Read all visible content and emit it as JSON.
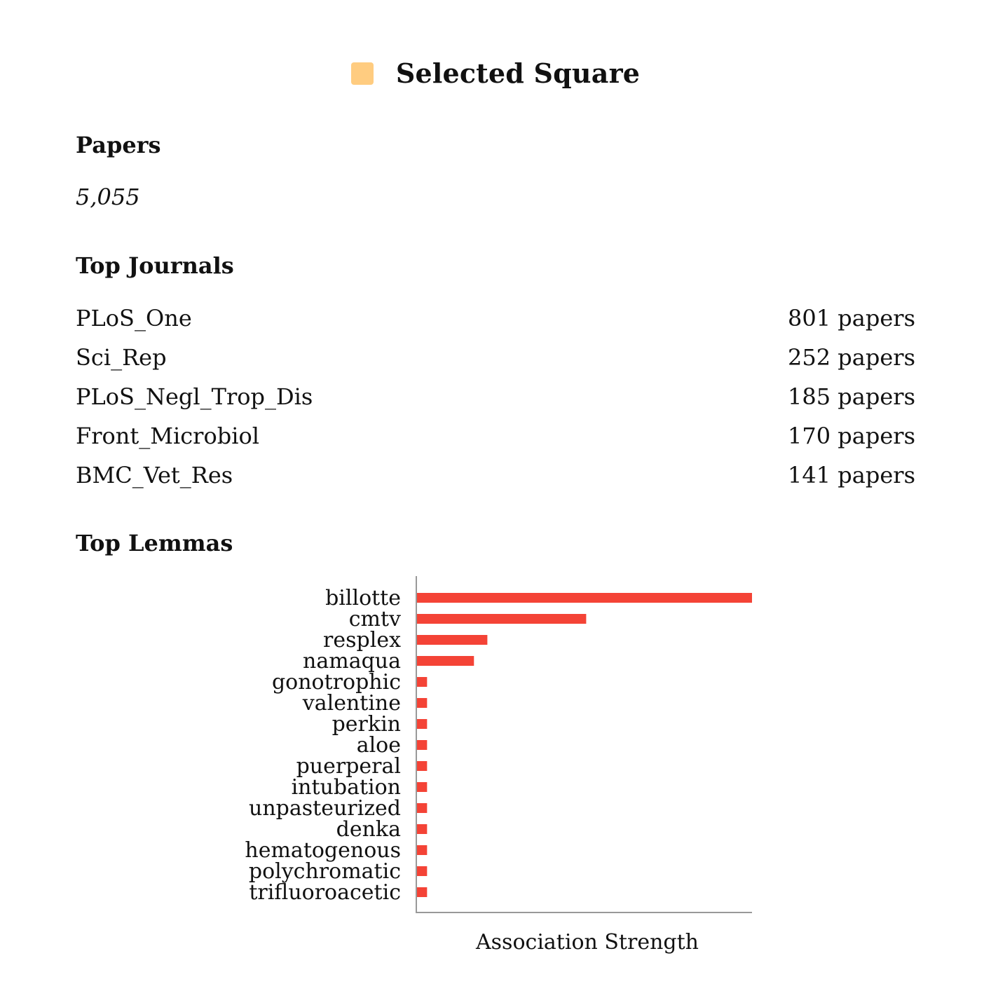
{
  "header": {
    "title": "Selected Square",
    "swatch_color": "#FFCC80"
  },
  "papers": {
    "title": "Papers",
    "count": "5,055"
  },
  "journals": {
    "title": "Top Journals",
    "items": [
      {
        "name": "PLoS_One",
        "count": "801 papers"
      },
      {
        "name": "Sci_Rep",
        "count": "252 papers"
      },
      {
        "name": "PLoS_Negl_Trop_Dis",
        "count": "185 papers"
      },
      {
        "name": "Front_Microbiol",
        "count": "170 papers"
      },
      {
        "name": "BMC_Vet_Res",
        "count": "141 papers"
      }
    ]
  },
  "lemmas": {
    "title": "Top Lemmas"
  },
  "chart_data": {
    "type": "bar",
    "orientation": "horizontal",
    "categories": [
      "billotte",
      "cmtv",
      "resplex",
      "namaqua",
      "gonotrophic",
      "valentine",
      "perkin",
      "aloe",
      "puerperal",
      "intubation",
      "unpasteurized",
      "denka",
      "hematogenous",
      "polychromatic",
      "trifluoroacetic"
    ],
    "values": [
      1.0,
      0.505,
      0.21,
      0.17,
      0.03,
      0.03,
      0.03,
      0.03,
      0.03,
      0.03,
      0.03,
      0.03,
      0.03,
      0.03,
      0.03
    ],
    "xlabel": "Association Strength",
    "ylabel": "",
    "xlim": [
      0,
      1.0
    ],
    "bar_color": "#F44336",
    "axis_color": "#999999"
  }
}
